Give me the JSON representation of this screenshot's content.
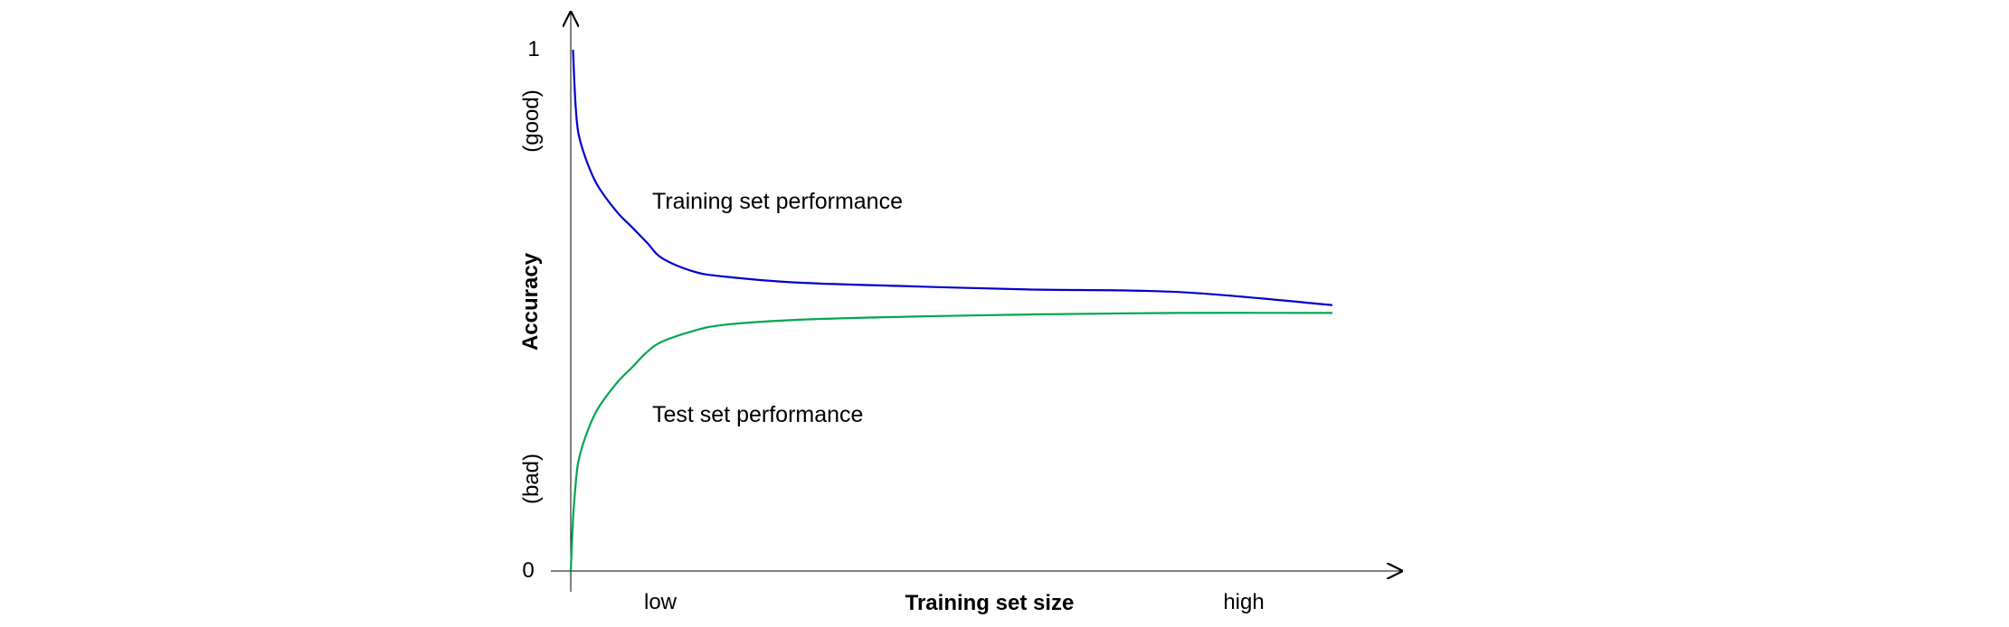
{
  "chart_data": {
    "type": "line",
    "xlabel": "Training set size",
    "ylabel": "Accuracy",
    "x_tick_labels": [
      "low",
      "high"
    ],
    "y_tick_labels": [
      "0",
      "1"
    ],
    "y_qualitative_labels": {
      "top": "(good)",
      "bottom": "(bad)"
    },
    "ylim": [
      0,
      1
    ],
    "xlim": [
      0,
      1
    ],
    "grid": false,
    "legend": "none",
    "series": [
      {
        "name": "Training set performance",
        "color": "#0000cc",
        "x": [
          0.003,
          0.006,
          0.01,
          0.02,
          0.035,
          0.06,
          0.08,
          0.1,
          0.12,
          0.16,
          0.2,
          0.3,
          0.45,
          0.6,
          0.8,
          1.0
        ],
        "y": [
          1.0,
          0.9,
          0.84,
          0.79,
          0.74,
          0.69,
          0.66,
          0.63,
          0.6,
          0.575,
          0.565,
          0.553,
          0.546,
          0.54,
          0.535,
          0.51
        ]
      },
      {
        "name": "Test set performance",
        "color": "#00a650",
        "x": [
          0.0,
          0.003,
          0.006,
          0.01,
          0.02,
          0.035,
          0.06,
          0.08,
          0.1,
          0.12,
          0.16,
          0.2,
          0.3,
          0.45,
          0.6,
          0.8,
          1.0
        ],
        "y": [
          0.0,
          0.1,
          0.16,
          0.21,
          0.26,
          0.31,
          0.36,
          0.39,
          0.42,
          0.44,
          0.46,
          0.472,
          0.482,
          0.488,
          0.492,
          0.495,
          0.495
        ]
      }
    ]
  }
}
